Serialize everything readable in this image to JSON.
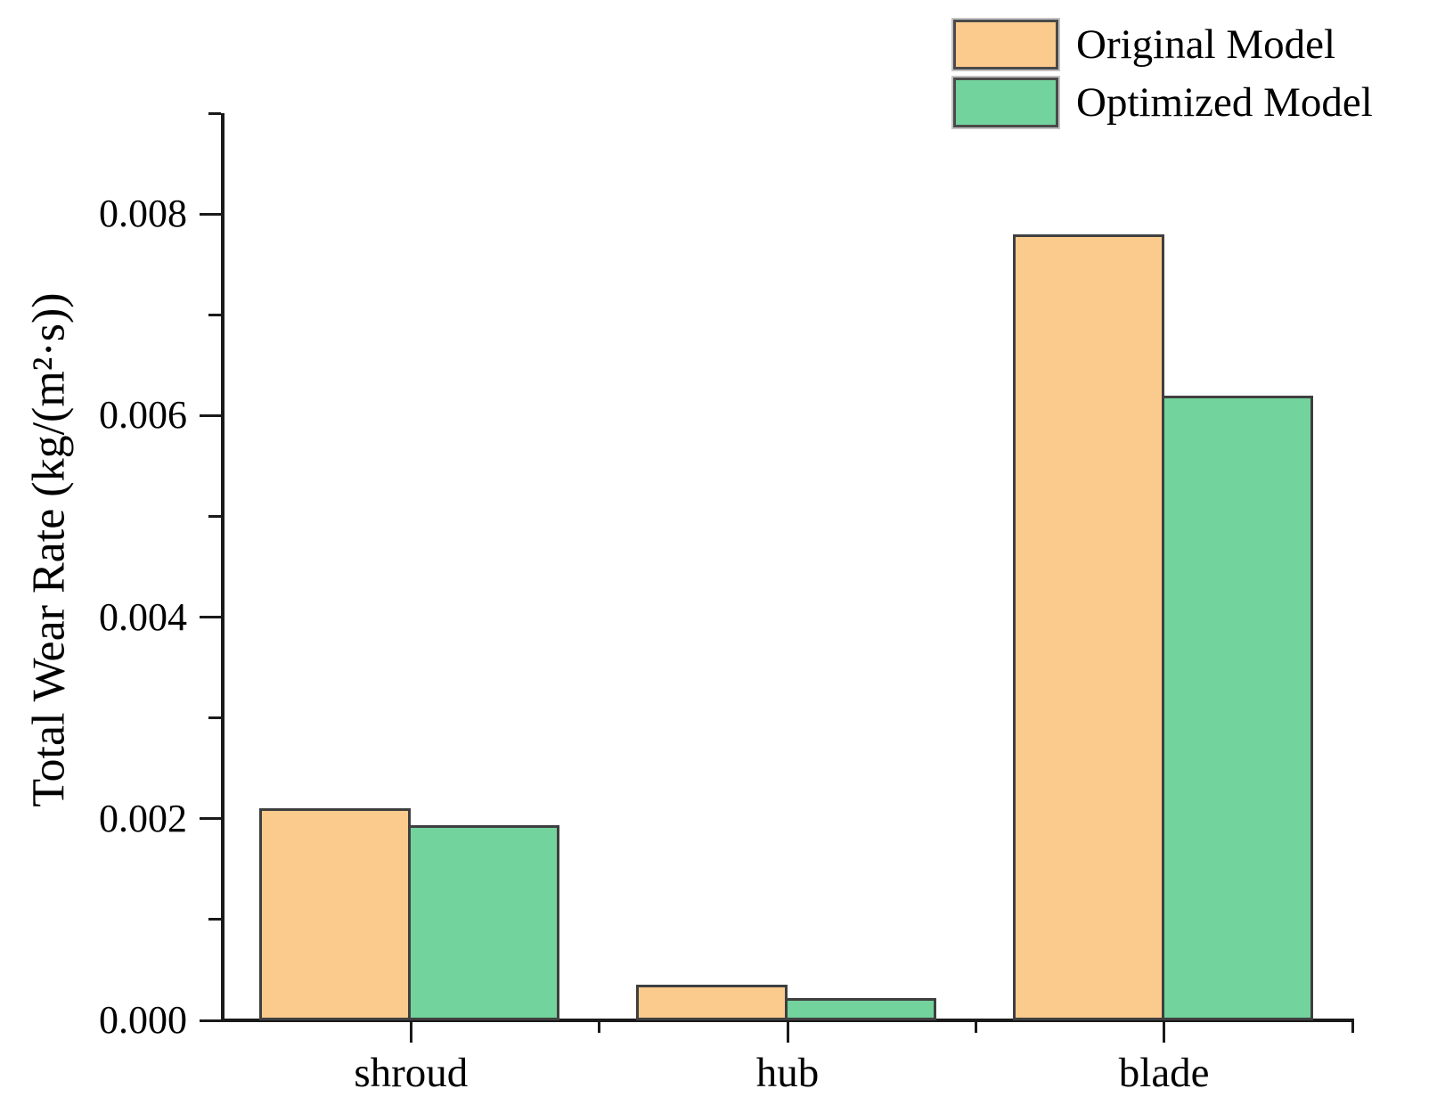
{
  "chart_data": {
    "type": "bar",
    "title": "",
    "categories": [
      "shroud",
      "hub",
      "blade"
    ],
    "series": [
      {
        "name": "Original Model",
        "color": "#FBCB8D",
        "values": [
          0.0021,
          0.00035,
          0.0078
        ]
      },
      {
        "name": "Optimized Model",
        "color": "#72D39D",
        "values": [
          0.00194,
          0.00022,
          0.0062
        ]
      }
    ],
    "xlabel": "",
    "ylabel": "Total Wear Rate (kg/(m²·s))",
    "ylim": [
      0,
      0.009
    ],
    "yticks_major": [
      0,
      0.002,
      0.004,
      0.006,
      0.008
    ],
    "ytick_labels": [
      "0.000",
      "0.002",
      "0.004",
      "0.006",
      "0.008"
    ],
    "yticks_minor": [
      0.001,
      0.003,
      0.005,
      0.007,
      0.009
    ],
    "legend_position": "top-right",
    "grid": false,
    "colors": {
      "bar_border": "#3f3f3f",
      "axis": "#1a1a1a",
      "text": "#000000",
      "legend_swatch_border": "#4a4a4a"
    }
  }
}
